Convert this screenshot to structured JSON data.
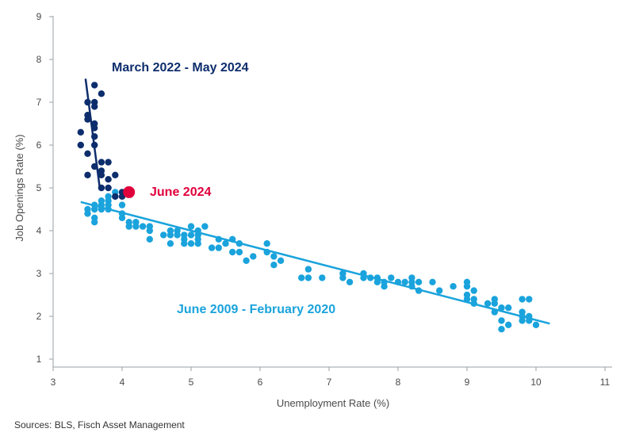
{
  "chart_data": {
    "type": "scatter",
    "title": "",
    "xlabel": "Unemployment Rate (%)",
    "ylabel": "Job Openings Rate (%)",
    "xlim": [
      3,
      11
    ],
    "ylim": [
      1,
      9
    ],
    "xticks": [
      3,
      4,
      5,
      6,
      7,
      8,
      9,
      10,
      11
    ],
    "yticks": [
      1,
      2,
      3,
      4,
      5,
      6,
      7,
      8,
      9
    ],
    "grid": false,
    "colors": {
      "recent": "#0d2d6c",
      "prior": "#1aa3dc",
      "highlight": "#e0003c"
    },
    "series": [
      {
        "name": "June 2009 - February 2020",
        "color": "#1aa3dc",
        "points": [
          [
            3.5,
            4.5
          ],
          [
            3.5,
            4.4
          ],
          [
            3.6,
            4.5
          ],
          [
            3.6,
            4.3
          ],
          [
            3.6,
            4.2
          ],
          [
            3.6,
            4.6
          ],
          [
            3.7,
            4.5
          ],
          [
            3.7,
            4.6
          ],
          [
            3.7,
            4.7
          ],
          [
            3.8,
            4.5
          ],
          [
            3.8,
            4.6
          ],
          [
            3.8,
            4.7
          ],
          [
            3.8,
            4.8
          ],
          [
            3.9,
            4.8
          ],
          [
            3.9,
            4.9
          ],
          [
            4.0,
            4.6
          ],
          [
            4.0,
            4.4
          ],
          [
            4.0,
            4.3
          ],
          [
            4.1,
            4.2
          ],
          [
            4.1,
            4.1
          ],
          [
            4.2,
            4.1
          ],
          [
            4.2,
            4.2
          ],
          [
            4.3,
            4.1
          ],
          [
            4.4,
            4.1
          ],
          [
            4.4,
            4.0
          ],
          [
            4.4,
            3.8
          ],
          [
            4.6,
            3.9
          ],
          [
            4.7,
            3.7
          ],
          [
            4.7,
            3.9
          ],
          [
            4.7,
            4.0
          ],
          [
            4.8,
            4.0
          ],
          [
            4.8,
            3.9
          ],
          [
            4.9,
            3.9
          ],
          [
            4.9,
            3.7
          ],
          [
            4.9,
            3.8
          ],
          [
            5.0,
            3.7
          ],
          [
            5.0,
            3.9
          ],
          [
            5.0,
            4.1
          ],
          [
            5.1,
            3.8
          ],
          [
            5.1,
            3.9
          ],
          [
            5.1,
            3.7
          ],
          [
            5.1,
            4.0
          ],
          [
            5.2,
            4.1
          ],
          [
            5.3,
            3.6
          ],
          [
            5.4,
            3.6
          ],
          [
            5.4,
            3.8
          ],
          [
            5.5,
            3.7
          ],
          [
            5.6,
            3.8
          ],
          [
            5.6,
            3.5
          ],
          [
            5.7,
            3.5
          ],
          [
            5.7,
            3.7
          ],
          [
            5.8,
            3.3
          ],
          [
            5.9,
            3.4
          ],
          [
            6.1,
            3.7
          ],
          [
            6.1,
            3.5
          ],
          [
            6.2,
            3.4
          ],
          [
            6.2,
            3.2
          ],
          [
            6.3,
            3.3
          ],
          [
            6.6,
            2.9
          ],
          [
            6.7,
            2.9
          ],
          [
            6.7,
            3.1
          ],
          [
            6.9,
            2.9
          ],
          [
            7.2,
            3.0
          ],
          [
            7.2,
            2.9
          ],
          [
            7.3,
            2.8
          ],
          [
            7.5,
            2.9
          ],
          [
            7.5,
            3.0
          ],
          [
            7.6,
            2.9
          ],
          [
            7.7,
            2.8
          ],
          [
            7.7,
            2.9
          ],
          [
            7.8,
            2.8
          ],
          [
            7.8,
            2.7
          ],
          [
            7.9,
            2.9
          ],
          [
            8.0,
            2.8
          ],
          [
            8.1,
            2.8
          ],
          [
            8.2,
            2.8
          ],
          [
            8.2,
            2.9
          ],
          [
            8.2,
            2.7
          ],
          [
            8.3,
            2.8
          ],
          [
            8.3,
            2.6
          ],
          [
            8.5,
            2.8
          ],
          [
            8.6,
            2.6
          ],
          [
            8.8,
            2.7
          ],
          [
            9.0,
            2.8
          ],
          [
            9.0,
            2.7
          ],
          [
            9.0,
            2.5
          ],
          [
            9.0,
            2.4
          ],
          [
            9.1,
            2.6
          ],
          [
            9.1,
            2.4
          ],
          [
            9.1,
            2.3
          ],
          [
            9.3,
            2.3
          ],
          [
            9.4,
            2.4
          ],
          [
            9.4,
            2.3
          ],
          [
            9.4,
            2.1
          ],
          [
            9.5,
            2.2
          ],
          [
            9.5,
            1.9
          ],
          [
            9.5,
            1.7
          ],
          [
            9.6,
            2.2
          ],
          [
            9.6,
            1.8
          ],
          [
            9.8,
            2.4
          ],
          [
            9.8,
            2.1
          ],
          [
            9.8,
            2.0
          ],
          [
            9.8,
            1.9
          ],
          [
            9.9,
            2.4
          ],
          [
            9.9,
            2.0
          ],
          [
            9.9,
            1.9
          ],
          [
            10.0,
            1.8
          ]
        ],
        "trend": {
          "x": [
            3.4,
            10.2
          ],
          "y": [
            4.67,
            1.83
          ]
        }
      },
      {
        "name": "March 2022 - May 2024",
        "color": "#0d2d6c",
        "points": [
          [
            3.4,
            6.3
          ],
          [
            3.4,
            6.0
          ],
          [
            3.5,
            7.0
          ],
          [
            3.5,
            6.7
          ],
          [
            3.5,
            6.6
          ],
          [
            3.5,
            5.8
          ],
          [
            3.5,
            5.3
          ],
          [
            3.6,
            7.4
          ],
          [
            3.6,
            7.0
          ],
          [
            3.6,
            6.9
          ],
          [
            3.6,
            6.5
          ],
          [
            3.6,
            6.4
          ],
          [
            3.6,
            6.2
          ],
          [
            3.6,
            6.0
          ],
          [
            3.6,
            5.5
          ],
          [
            3.7,
            7.2
          ],
          [
            3.7,
            5.6
          ],
          [
            3.7,
            5.4
          ],
          [
            3.7,
            5.3
          ],
          [
            3.7,
            5.0
          ],
          [
            3.8,
            5.6
          ],
          [
            3.8,
            5.2
          ],
          [
            3.8,
            5.0
          ],
          [
            3.9,
            5.3
          ],
          [
            3.9,
            4.8
          ],
          [
            4.0,
            4.9
          ],
          [
            4.0,
            4.8
          ]
        ],
        "trend": {
          "x": [
            3.47,
            3.68
          ],
          "y": [
            7.55,
            4.95
          ]
        }
      }
    ],
    "highlight": {
      "name": "June 2024",
      "x": 4.1,
      "y": 4.9
    },
    "annotations": [
      {
        "text": "March 2022 - May 2024",
        "color": "#0d2d6c"
      },
      {
        "text": "June 2024",
        "color": "#e0003c"
      },
      {
        "text": "June 2009 - February 2020",
        "color": "#1aa3dc"
      }
    ],
    "source": "Sources: BLS, Fisch Asset Management"
  }
}
